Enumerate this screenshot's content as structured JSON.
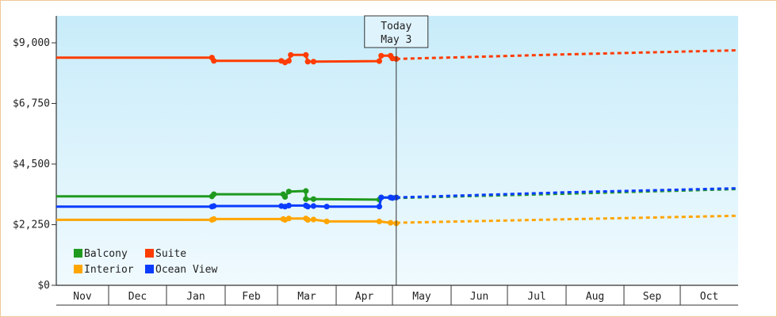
{
  "chart_data": {
    "type": "line",
    "title": "",
    "xlabel": "",
    "ylabel": "",
    "ylim": [
      0,
      10000
    ],
    "y_ticks": [
      "$0",
      "$2,250",
      "$4,500",
      "$6,750",
      "$9,000"
    ],
    "y_tick_values": [
      0,
      2250,
      4500,
      6750,
      9000
    ],
    "months": [
      "Nov",
      "Dec",
      "Jan",
      "Feb",
      "Mar",
      "Apr",
      "May",
      "Jun",
      "Jul",
      "Aug",
      "Sep",
      "Oct"
    ],
    "today_label": [
      "Today",
      "May 3"
    ],
    "today_date": "May 3",
    "legend": [
      "Balcony",
      "Suite",
      "Interior",
      "Ocean View"
    ],
    "legend_position": "bottom-left",
    "colors": {
      "Balcony": "#1f9a1f",
      "Suite": "#ff3c00",
      "Interior": "#ffa500",
      "Ocean View": "#0a3cff",
      "plot_bg_top": "#c8ecfa",
      "plot_bg_bottom": "#f0fafe",
      "frame": "#f0c896"
    },
    "series": [
      {
        "name": "Balcony",
        "points": [
          {
            "x": "Nov 1",
            "y": 3300
          },
          {
            "x": "Jan 25",
            "y": 3300
          },
          {
            "x": "Jan 26",
            "y": 3380
          },
          {
            "x": "Mar 4",
            "y": 3380
          },
          {
            "x": "Mar 5",
            "y": 3280
          },
          {
            "x": "Mar 7",
            "y": 3480
          },
          {
            "x": "Mar 16",
            "y": 3500
          },
          {
            "x": "Mar 16",
            "y": 3200
          },
          {
            "x": "Mar 20",
            "y": 3200
          },
          {
            "x": "Apr 24",
            "y": 3180
          },
          {
            "x": "Apr 25",
            "y": 3260
          },
          {
            "x": "Apr 30",
            "y": 3260
          },
          {
            "x": "May 1",
            "y": 3240
          },
          {
            "x": "May 3",
            "y": 3260
          }
        ],
        "forecast": [
          {
            "x": "May 3",
            "y": 3240
          },
          {
            "x": "Aug 1",
            "y": 3400
          },
          {
            "x": "Oct 31",
            "y": 3570
          }
        ]
      },
      {
        "name": "Suite",
        "points": [
          {
            "x": "Nov 1",
            "y": 8450
          },
          {
            "x": "Jan 25",
            "y": 8450
          },
          {
            "x": "Jan 26",
            "y": 8330
          },
          {
            "x": "Mar 3",
            "y": 8330
          },
          {
            "x": "Mar 5",
            "y": 8270
          },
          {
            "x": "Mar 7",
            "y": 8330
          },
          {
            "x": "Mar 8",
            "y": 8550
          },
          {
            "x": "Mar 16",
            "y": 8550
          },
          {
            "x": "Mar 17",
            "y": 8300
          },
          {
            "x": "Mar 20",
            "y": 8300
          },
          {
            "x": "Apr 24",
            "y": 8320
          },
          {
            "x": "Apr 25",
            "y": 8520
          },
          {
            "x": "Apr 30",
            "y": 8520
          },
          {
            "x": "May 1",
            "y": 8420
          },
          {
            "x": "May 3",
            "y": 8400
          }
        ],
        "forecast": [
          {
            "x": "May 3",
            "y": 8400
          },
          {
            "x": "Aug 1",
            "y": 8570
          },
          {
            "x": "Oct 31",
            "y": 8720
          }
        ]
      },
      {
        "name": "Interior",
        "points": [
          {
            "x": "Nov 1",
            "y": 2430
          },
          {
            "x": "Jan 25",
            "y": 2430
          },
          {
            "x": "Jan 26",
            "y": 2460
          },
          {
            "x": "Mar 4",
            "y": 2460
          },
          {
            "x": "Mar 5",
            "y": 2430
          },
          {
            "x": "Mar 7",
            "y": 2480
          },
          {
            "x": "Mar 16",
            "y": 2480
          },
          {
            "x": "Mar 17",
            "y": 2430
          },
          {
            "x": "Mar 20",
            "y": 2440
          },
          {
            "x": "Mar 27",
            "y": 2370
          },
          {
            "x": "Apr 24",
            "y": 2370
          },
          {
            "x": "Apr 30",
            "y": 2320
          },
          {
            "x": "May 3",
            "y": 2300
          }
        ],
        "forecast": [
          {
            "x": "May 3",
            "y": 2320
          },
          {
            "x": "Aug 1",
            "y": 2450
          },
          {
            "x": "Oct 31",
            "y": 2580
          }
        ]
      },
      {
        "name": "Ocean View",
        "points": [
          {
            "x": "Nov 1",
            "y": 2920
          },
          {
            "x": "Jan 25",
            "y": 2920
          },
          {
            "x": "Jan 26",
            "y": 2940
          },
          {
            "x": "Mar 3",
            "y": 2940
          },
          {
            "x": "Mar 5",
            "y": 2920
          },
          {
            "x": "Mar 7",
            "y": 2960
          },
          {
            "x": "Mar 16",
            "y": 2960
          },
          {
            "x": "Mar 17",
            "y": 2920
          },
          {
            "x": "Mar 20",
            "y": 2940
          },
          {
            "x": "Mar 27",
            "y": 2920
          },
          {
            "x": "Apr 24",
            "y": 2920
          },
          {
            "x": "Apr 25",
            "y": 3260
          },
          {
            "x": "Apr 30",
            "y": 3260
          },
          {
            "x": "May 1",
            "y": 3240
          },
          {
            "x": "May 3",
            "y": 3260
          }
        ],
        "forecast": [
          {
            "x": "May 3",
            "y": 3260
          },
          {
            "x": "Aug 1",
            "y": 3450
          },
          {
            "x": "Oct 31",
            "y": 3600
          }
        ]
      }
    ]
  }
}
